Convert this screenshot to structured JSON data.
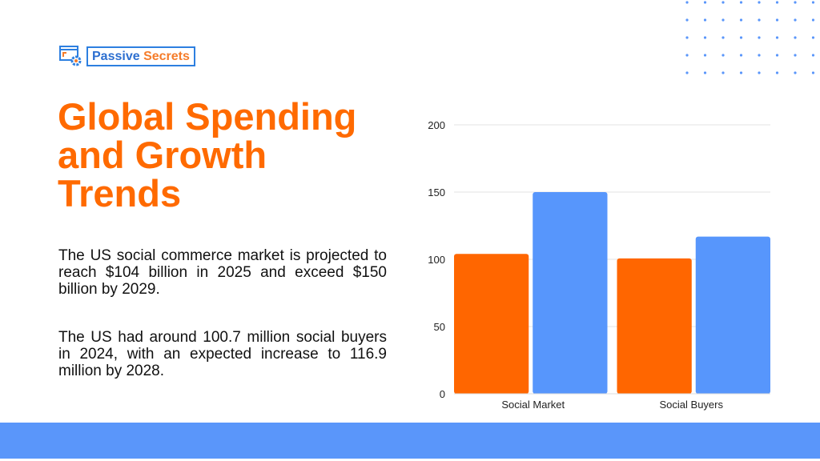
{
  "logo": {
    "text_part1": "Passive",
    "text_part2": "Secrets"
  },
  "title": "Global Spending and Growth Trends",
  "paragraphs": [
    "The US social commerce market is projected to reach $104 billion in 2025 and exceed $150 billion by 2029.",
    "The US had around 100.7 million social buyers in 2024, with an expected increase to 116.9 million by 2028."
  ],
  "colors": {
    "accent": "#ff6600",
    "blue": "#5796fc",
    "band": "#5a96fa"
  },
  "chart_data": {
    "type": "bar",
    "categories": [
      "Social Market",
      "Social Buyers"
    ],
    "series": [
      {
        "values": [
          104,
          100.7
        ],
        "color": "#ff6600"
      },
      {
        "values": [
          150,
          116.9
        ],
        "color": "#5796fc"
      }
    ],
    "ylim": [
      0,
      200
    ],
    "yticks": [
      0,
      50,
      100,
      150,
      200
    ],
    "grid": true,
    "legend": "none"
  }
}
